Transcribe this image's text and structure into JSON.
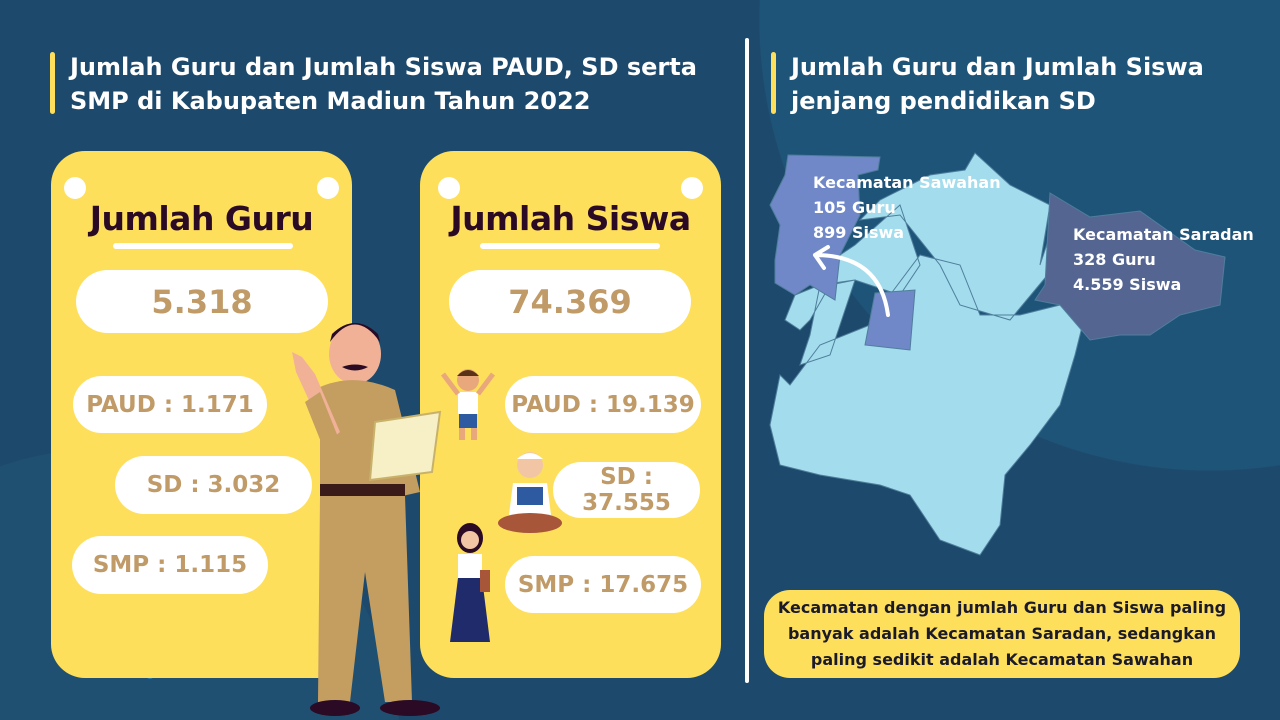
{
  "left_title": "Jumlah Guru dan Jumlah Siswa PAUD, SD serta SMP di Kabupaten Madiun Tahun 2022",
  "right_title": "Jumlah Guru dan Jumlah Siswa jenjang pendidikan SD",
  "guru": {
    "heading": "Jumlah Guru",
    "total": "5.318",
    "paud": "PAUD : 1.171",
    "sd": "SD : 3.032",
    "smp": "SMP : 1.115"
  },
  "siswa": {
    "heading": "Jumlah Siswa",
    "total": "74.369",
    "paud": "PAUD : 19.139",
    "sd": "SD : 37.555",
    "smp": "SMP : 17.675"
  },
  "map": {
    "sawahan": {
      "name": "Kecamatan Sawahan",
      "guru": "105 Guru",
      "siswa": "899 Siswa",
      "color": "#7088c8"
    },
    "saradan": {
      "name": "Kecamatan Saradan",
      "guru": "328 Guru",
      "siswa": "4.559 Siswa",
      "color": "#546592"
    },
    "base_color": "#a3dcec"
  },
  "note": "Kecamatan dengan jumlah Guru dan Siswa paling banyak adalah Kecamatan Saradan, sedangkan paling sedikit adalah Kecamatan Sawahan",
  "colors": {
    "background": "#1d4a6c",
    "card": "#fedf5c",
    "value_text": "#c09a67",
    "heading_text": "#2a0a24"
  }
}
